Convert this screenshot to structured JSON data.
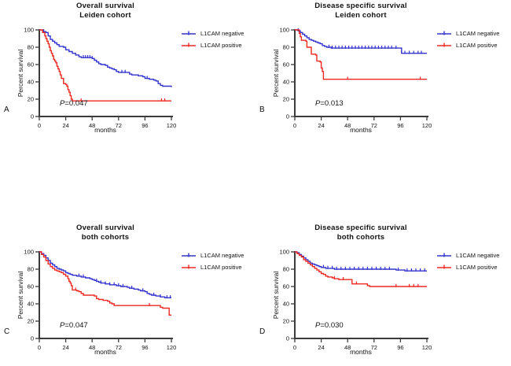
{
  "figure": {
    "background": "#ffffff",
    "axis_color": "#3c3c3c",
    "text_color": "#111111",
    "negative_color": "#3333cf",
    "positive_color": "#ee2822"
  },
  "chart_data": [
    {
      "type": "line",
      "panel_label": "A",
      "title": "Overall survival",
      "subtitle": "Leiden cohort",
      "xlabel": "months",
      "ylabel": "Percent survival",
      "xlim": [
        0,
        120
      ],
      "ylim": [
        0,
        100
      ],
      "xticks": [
        0,
        24,
        48,
        72,
        96,
        120
      ],
      "yticks": [
        0,
        20,
        40,
        60,
        80,
        100
      ],
      "p_prefix": "P",
      "p_value": "=0.047",
      "legend_position": "right-top",
      "series": [
        {
          "name": "L1CAM negative",
          "color": "#3333cf",
          "points": [
            [
              0,
              100
            ],
            [
              3,
              98
            ],
            [
              6,
              97
            ],
            [
              8,
              93
            ],
            [
              10,
              89
            ],
            [
              12,
              87
            ],
            [
              14,
              85
            ],
            [
              16,
              83
            ],
            [
              18,
              81
            ],
            [
              22,
              80
            ],
            [
              24,
              77
            ],
            [
              27,
              75
            ],
            [
              30,
              73
            ],
            [
              33,
              71
            ],
            [
              36,
              69
            ],
            [
              38,
              68
            ],
            [
              48,
              67
            ],
            [
              50,
              65
            ],
            [
              52,
              63
            ],
            [
              54,
              61
            ],
            [
              56,
              60
            ],
            [
              60,
              59
            ],
            [
              62,
              57
            ],
            [
              64,
              56
            ],
            [
              66,
              55
            ],
            [
              68,
              54
            ],
            [
              70,
              52
            ],
            [
              72,
              51
            ],
            [
              80,
              51
            ],
            [
              82,
              49
            ],
            [
              84,
              48
            ],
            [
              90,
              47
            ],
            [
              94,
              46
            ],
            [
              96,
              44
            ],
            [
              100,
              43
            ],
            [
              104,
              42
            ],
            [
              106,
              41
            ],
            [
              108,
              38
            ],
            [
              110,
              36
            ],
            [
              112,
              35
            ],
            [
              120,
              34
            ]
          ],
          "censor_ticks": [
            4,
            40,
            42,
            44,
            46,
            48,
            75,
            78,
            98
          ]
        },
        {
          "name": "L1CAM positive",
          "color": "#ee2822",
          "points": [
            [
              0,
              100
            ],
            [
              3,
              97
            ],
            [
              5,
              93
            ],
            [
              6,
              90
            ],
            [
              7,
              87
            ],
            [
              8,
              84
            ],
            [
              9,
              80
            ],
            [
              10,
              76
            ],
            [
              11,
              73
            ],
            [
              12,
              70
            ],
            [
              13,
              66
            ],
            [
              14,
              64
            ],
            [
              15,
              62
            ],
            [
              16,
              58
            ],
            [
              17,
              55
            ],
            [
              18,
              52
            ],
            [
              19,
              48
            ],
            [
              20,
              44
            ],
            [
              22,
              38
            ],
            [
              24,
              37
            ],
            [
              25,
              35
            ],
            [
              26,
              31
            ],
            [
              27,
              28
            ],
            [
              28,
              24
            ],
            [
              29,
              20
            ],
            [
              30,
              18
            ],
            [
              120,
              18
            ]
          ],
          "censor_ticks": [
            38,
            111,
            114
          ]
        }
      ]
    },
    {
      "type": "line",
      "panel_label": "B",
      "title": "Disease specific survival",
      "subtitle": "Leiden cohort",
      "xlabel": "months",
      "ylabel": "Percent survival",
      "xlim": [
        0,
        120
      ],
      "ylim": [
        0,
        100
      ],
      "xticks": [
        0,
        24,
        48,
        72,
        96,
        120
      ],
      "yticks": [
        0,
        20,
        40,
        60,
        80,
        100
      ],
      "p_prefix": "P",
      "p_value": "=0.013",
      "legend_position": "right-top",
      "series": [
        {
          "name": "L1CAM negative",
          "color": "#3333cf",
          "points": [
            [
              0,
              100
            ],
            [
              3,
              99
            ],
            [
              5,
              97
            ],
            [
              7,
              95
            ],
            [
              9,
              93
            ],
            [
              11,
              91
            ],
            [
              13,
              89
            ],
            [
              15,
              88
            ],
            [
              17,
              87
            ],
            [
              19,
              86
            ],
            [
              21,
              85
            ],
            [
              23,
              84
            ],
            [
              25,
              82
            ],
            [
              27,
              81
            ],
            [
              29,
              80
            ],
            [
              33,
              79
            ],
            [
              96,
              79
            ],
            [
              97,
              73
            ],
            [
              120,
              73
            ]
          ],
          "censor_ticks": [
            3,
            31,
            34,
            37,
            40,
            43,
            46,
            49,
            52,
            55,
            58,
            61,
            64,
            67,
            70,
            73,
            76,
            79,
            82,
            85,
            88,
            92,
            100,
            104,
            108,
            112,
            115
          ]
        },
        {
          "name": "L1CAM positive",
          "color": "#ee2822",
          "points": [
            [
              0,
              100
            ],
            [
              4,
              96
            ],
            [
              5,
              92
            ],
            [
              6,
              88
            ],
            [
              10,
              87
            ],
            [
              11,
              80
            ],
            [
              14,
              80
            ],
            [
              15,
              72
            ],
            [
              19,
              71
            ],
            [
              20,
              64
            ],
            [
              23,
              63
            ],
            [
              24,
              56
            ],
            [
              25,
              52
            ],
            [
              26,
              43
            ],
            [
              120,
              43
            ]
          ],
          "censor_ticks": [
            48,
            114
          ]
        }
      ]
    },
    {
      "type": "line",
      "panel_label": "C",
      "title": "Overall survival",
      "subtitle": "both cohorts",
      "xlabel": "months",
      "ylabel": "Percent survival",
      "xlim": [
        0,
        120
      ],
      "ylim": [
        0,
        100
      ],
      "xticks": [
        0,
        24,
        48,
        72,
        96,
        120
      ],
      "yticks": [
        0,
        20,
        40,
        60,
        80,
        100
      ],
      "p_prefix": "P",
      "p_value": "=0.047",
      "legend_position": "right-top",
      "series": [
        {
          "name": "L1CAM negative",
          "color": "#3333cf",
          "points": [
            [
              0,
              100
            ],
            [
              2,
              98
            ],
            [
              4,
              96
            ],
            [
              6,
              93
            ],
            [
              8,
              90
            ],
            [
              10,
              87
            ],
            [
              12,
              85
            ],
            [
              14,
              83
            ],
            [
              16,
              81
            ],
            [
              18,
              80
            ],
            [
              20,
              79
            ],
            [
              22,
              78
            ],
            [
              24,
              76
            ],
            [
              26,
              75
            ],
            [
              28,
              74
            ],
            [
              30,
              73
            ],
            [
              34,
              72
            ],
            [
              38,
              71
            ],
            [
              42,
              70
            ],
            [
              46,
              69
            ],
            [
              48,
              68
            ],
            [
              50,
              67
            ],
            [
              52,
              66
            ],
            [
              54,
              65
            ],
            [
              56,
              64
            ],
            [
              60,
              63
            ],
            [
              64,
              62
            ],
            [
              70,
              61
            ],
            [
              74,
              60
            ],
            [
              80,
              59
            ],
            [
              82,
              58
            ],
            [
              86,
              57
            ],
            [
              90,
              56
            ],
            [
              92,
              55
            ],
            [
              96,
              54
            ],
            [
              98,
              52
            ],
            [
              100,
              51
            ],
            [
              102,
              50
            ],
            [
              106,
              49
            ],
            [
              110,
              48
            ],
            [
              114,
              47
            ],
            [
              120,
              47
            ]
          ],
          "censor_ticks": [
            36,
            40,
            52,
            56,
            60,
            64,
            68,
            72,
            76,
            84,
            94,
            104,
            110,
            116,
            119
          ]
        },
        {
          "name": "L1CAM positive",
          "color": "#ee2822",
          "points": [
            [
              0,
              100
            ],
            [
              2,
              97
            ],
            [
              4,
              94
            ],
            [
              6,
              90
            ],
            [
              8,
              86
            ],
            [
              10,
              83
            ],
            [
              12,
              81
            ],
            [
              14,
              79
            ],
            [
              16,
              78
            ],
            [
              18,
              77
            ],
            [
              20,
              76
            ],
            [
              22,
              74
            ],
            [
              24,
              72
            ],
            [
              26,
              69
            ],
            [
              27,
              66
            ],
            [
              28,
              64
            ],
            [
              29,
              61
            ],
            [
              30,
              56
            ],
            [
              34,
              55
            ],
            [
              36,
              54
            ],
            [
              38,
              52
            ],
            [
              40,
              50
            ],
            [
              48,
              50
            ],
            [
              50,
              49
            ],
            [
              52,
              46
            ],
            [
              54,
              45
            ],
            [
              58,
              44
            ],
            [
              62,
              43
            ],
            [
              64,
              41
            ],
            [
              66,
              40
            ],
            [
              68,
              38
            ],
            [
              108,
              38
            ],
            [
              110,
              36
            ],
            [
              112,
              35
            ],
            [
              117,
              35
            ],
            [
              118,
              27
            ],
            [
              120,
              27
            ]
          ],
          "censor_ticks": [
            33,
            100
          ]
        }
      ]
    },
    {
      "type": "line",
      "panel_label": "D",
      "title": "Disease specific survival",
      "subtitle": "both cohorts",
      "xlabel": "months",
      "ylabel": "Percent survival",
      "xlim": [
        0,
        120
      ],
      "ylim": [
        0,
        100
      ],
      "xticks": [
        0,
        24,
        48,
        72,
        96,
        120
      ],
      "yticks": [
        0,
        20,
        40,
        60,
        80,
        100
      ],
      "p_prefix": "P",
      "p_value": "=0.030",
      "legend_position": "right-top",
      "series": [
        {
          "name": "L1CAM negative",
          "color": "#3333cf",
          "points": [
            [
              0,
              100
            ],
            [
              2,
              99
            ],
            [
              4,
              97
            ],
            [
              6,
              95
            ],
            [
              8,
              93
            ],
            [
              10,
              91
            ],
            [
              12,
              89
            ],
            [
              14,
              87
            ],
            [
              16,
              86
            ],
            [
              18,
              85
            ],
            [
              20,
              84
            ],
            [
              22,
              83
            ],
            [
              24,
              82
            ],
            [
              28,
              81
            ],
            [
              36,
              80
            ],
            [
              90,
              80
            ],
            [
              92,
              79
            ],
            [
              98,
              79
            ],
            [
              100,
              78
            ],
            [
              120,
              78
            ]
          ],
          "censor_ticks": [
            26,
            30,
            34,
            38,
            42,
            46,
            50,
            54,
            58,
            62,
            66,
            70,
            74,
            78,
            82,
            86,
            94,
            102,
            106,
            110,
            114,
            118
          ]
        },
        {
          "name": "L1CAM positive",
          "color": "#ee2822",
          "points": [
            [
              0,
              100
            ],
            [
              2,
              98
            ],
            [
              4,
              96
            ],
            [
              6,
              94
            ],
            [
              8,
              91
            ],
            [
              10,
              89
            ],
            [
              12,
              87
            ],
            [
              14,
              85
            ],
            [
              16,
              83
            ],
            [
              18,
              81
            ],
            [
              20,
              79
            ],
            [
              22,
              77
            ],
            [
              24,
              75
            ],
            [
              26,
              74
            ],
            [
              28,
              72
            ],
            [
              30,
              71
            ],
            [
              34,
              70
            ],
            [
              36,
              69
            ],
            [
              40,
              68
            ],
            [
              50,
              68
            ],
            [
              52,
              63
            ],
            [
              64,
              63
            ],
            [
              66,
              61
            ],
            [
              68,
              60
            ],
            [
              120,
              60
            ]
          ],
          "censor_ticks": [
            36,
            44,
            56,
            92,
            104,
            108,
            112
          ]
        }
      ]
    }
  ]
}
